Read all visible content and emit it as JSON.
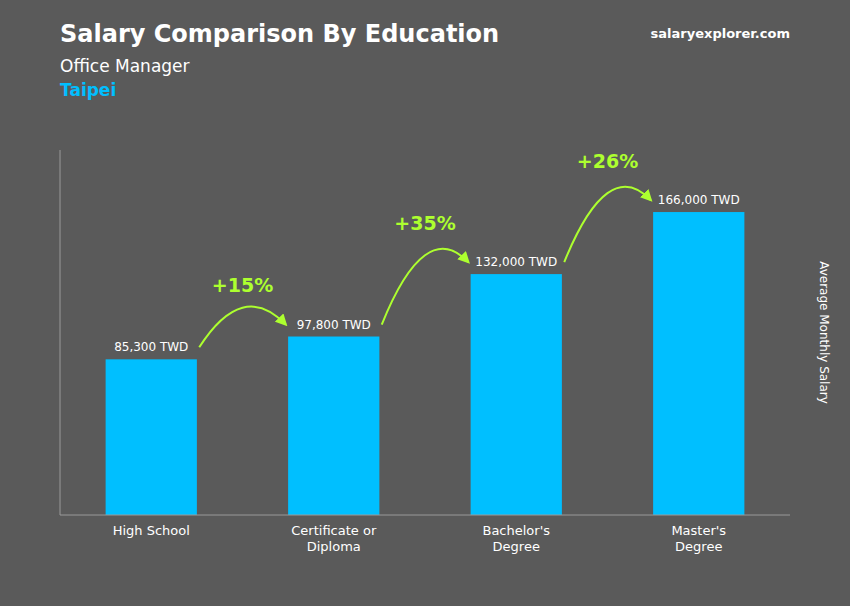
{
  "chart_data": {
    "type": "bar",
    "title": "Salary Comparison By Education",
    "subtitle": [
      "Office Manager",
      "Taipei"
    ],
    "ylabel": "Average Monthly Salary",
    "categories": [
      "High School",
      "Certificate or\nDiploma",
      "Bachelor's\nDegree",
      "Master's\nDegree"
    ],
    "values": [
      85300,
      97800,
      132000,
      166000
    ],
    "value_labels": [
      "85,300 TWD",
      "97,800 TWD",
      "132,000 TWD",
      "166,000 TWD"
    ],
    "data_labels": true,
    "annotations": [
      "+15%",
      "+35%",
      "+26%"
    ],
    "source": "salaryexplorer.com",
    "color": "#00BFFF",
    "ylim": [
      0,
      200000
    ],
    "yticks": [],
    "grid": false,
    "tick_labels": "x"
  }
}
